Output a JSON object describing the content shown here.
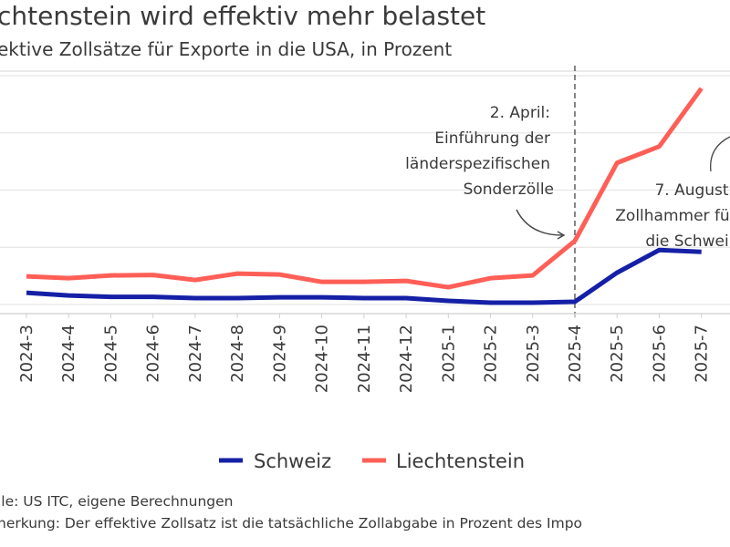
{
  "title": "chtenstein wird effektiv mehr belastet",
  "subtitle": "ektive Zollsätze für Exporte in die USA, in Prozent",
  "footer": {
    "source": "lle: US ITC, eigene Berechnungen",
    "note": "nerkung: Der effektive Zollsatz ist die tatsächliche Zollabgabe in Prozent des Impo"
  },
  "annotations": {
    "april": [
      "2. April:",
      "Einführung der",
      "länderspezifischen",
      "Sonderzölle"
    ],
    "august": [
      "7. August",
      "Zollhammer fü",
      "die Schwei"
    ]
  },
  "chart_data": {
    "type": "line",
    "categories": [
      "2024-3",
      "2024-4",
      "2024-5",
      "2024-6",
      "2024-7",
      "2024-8",
      "2024-9",
      "2024-10",
      "2024-11",
      "2024-12",
      "2025-1",
      "2025-2",
      "2025-3",
      "2025-4",
      "2025-5",
      "2025-6",
      "2025-7"
    ],
    "series": [
      {
        "name": "Schweiz",
        "color": "#1520a6",
        "values": [
          1.03,
          0.79,
          0.67,
          0.67,
          0.56,
          0.56,
          0.63,
          0.63,
          0.56,
          0.56,
          0.32,
          0.16,
          0.16,
          0.24,
          2.78,
          4.76,
          4.6
        ]
      },
      {
        "name": "Liechtenstein",
        "color": "#ff5f57",
        "values": [
          2.46,
          2.3,
          2.54,
          2.58,
          2.14,
          2.7,
          2.62,
          1.98,
          1.98,
          2.06,
          1.51,
          2.3,
          2.54,
          5.56,
          12.38,
          13.81,
          18.89
        ]
      }
    ],
    "ylim": [
      0,
      20
    ],
    "grid": true,
    "vertical_marker": "2025-4",
    "legend": "bottom-center"
  }
}
